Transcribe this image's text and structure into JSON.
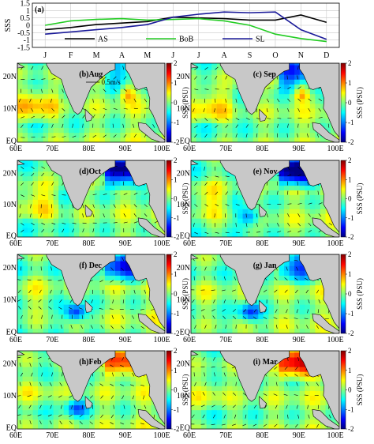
{
  "chart_data": [
    {
      "type": "line",
      "panel_label": "(a)",
      "ylabel": "SSS",
      "ylim": [
        -1.5,
        1.5
      ],
      "yticks": [
        "-1.5",
        "-1",
        "-0.5",
        "0",
        "0.5",
        "1",
        "1.5"
      ],
      "categories": [
        "J",
        "F",
        "M",
        "A",
        "M",
        "J",
        "J",
        "A",
        "S",
        "O",
        "N",
        "D"
      ],
      "grid": true,
      "legend_placement": "bottom-center",
      "series": [
        {
          "name": "AS",
          "color": "#000000",
          "values": [
            -0.3,
            -0.15,
            0.05,
            0.15,
            0.25,
            0.55,
            0.5,
            0.45,
            0.35,
            0.35,
            0.7,
            0.2
          ]
        },
        {
          "name": "BoB",
          "color": "#22cc22",
          "values": [
            0.0,
            0.3,
            0.4,
            0.45,
            0.35,
            0.4,
            0.45,
            0.3,
            0.0,
            -0.6,
            -0.9,
            -1.1
          ]
        },
        {
          "name": "SL",
          "color": "#1a1a99",
          "values": [
            -0.6,
            -0.45,
            -0.3,
            -0.15,
            0.05,
            0.55,
            0.75,
            0.9,
            0.85,
            0.9,
            -0.3,
            -0.95
          ]
        }
      ]
    },
    {
      "type": "heatmap",
      "panels": [
        {
          "label": "(b)Aug",
          "scale_label": "0.5m/s"
        },
        {
          "label": "(c) Sep"
        },
        {
          "label": "(d)Oct"
        },
        {
          "label": "(e) Nov"
        },
        {
          "label": "(f) Dec"
        },
        {
          "label": "(g) Jan"
        },
        {
          "label": "(h)Feb"
        },
        {
          "label": "(i) Mar"
        }
      ],
      "xticks": [
        "60E",
        "70E",
        "80E",
        "90E",
        "100E"
      ],
      "yticks": [
        "EQ",
        "10N",
        "20N"
      ],
      "colorbar": {
        "label": "SSS (PSU)",
        "ticks": [
          "-2",
          "-1",
          "0",
          "1",
          "2"
        ],
        "range": [
          -2,
          2
        ]
      }
    }
  ]
}
